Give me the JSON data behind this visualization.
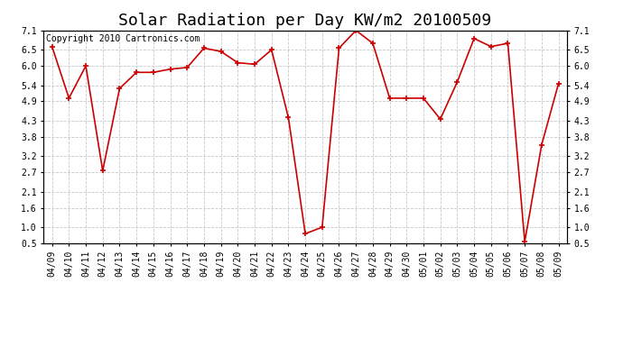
{
  "title": "Solar Radiation per Day KW/m2 20100509",
  "copyright": "Copyright 2010 Cartronics.com",
  "dates": [
    "04/09",
    "04/10",
    "04/11",
    "04/12",
    "04/13",
    "04/14",
    "04/15",
    "04/16",
    "04/17",
    "04/18",
    "04/19",
    "04/20",
    "04/21",
    "04/22",
    "04/23",
    "04/24",
    "04/25",
    "04/26",
    "04/27",
    "04/28",
    "04/29",
    "04/30",
    "05/01",
    "05/02",
    "05/03",
    "05/04",
    "05/05",
    "05/06",
    "05/07",
    "05/08",
    "05/09"
  ],
  "values": [
    6.6,
    5.0,
    6.0,
    2.75,
    5.3,
    5.8,
    5.8,
    5.9,
    5.95,
    6.55,
    6.45,
    6.1,
    6.05,
    6.5,
    4.4,
    0.8,
    1.0,
    6.55,
    7.1,
    6.7,
    5.0,
    5.0,
    5.0,
    4.35,
    5.5,
    6.85,
    6.6,
    6.7,
    0.55,
    3.55,
    5.45
  ],
  "line_color": "#cc0000",
  "marker": "+",
  "marker_color": "#cc0000",
  "bg_color": "#ffffff",
  "grid_color": "#c8c8c8",
  "ylim_min": 0.5,
  "ylim_max": 7.1,
  "yticks": [
    0.5,
    1.0,
    1.6,
    2.1,
    2.7,
    3.2,
    3.8,
    4.3,
    4.9,
    5.4,
    6.0,
    6.5,
    7.1
  ],
  "title_fontsize": 13,
  "copyright_fontsize": 7,
  "tick_fontsize": 7
}
